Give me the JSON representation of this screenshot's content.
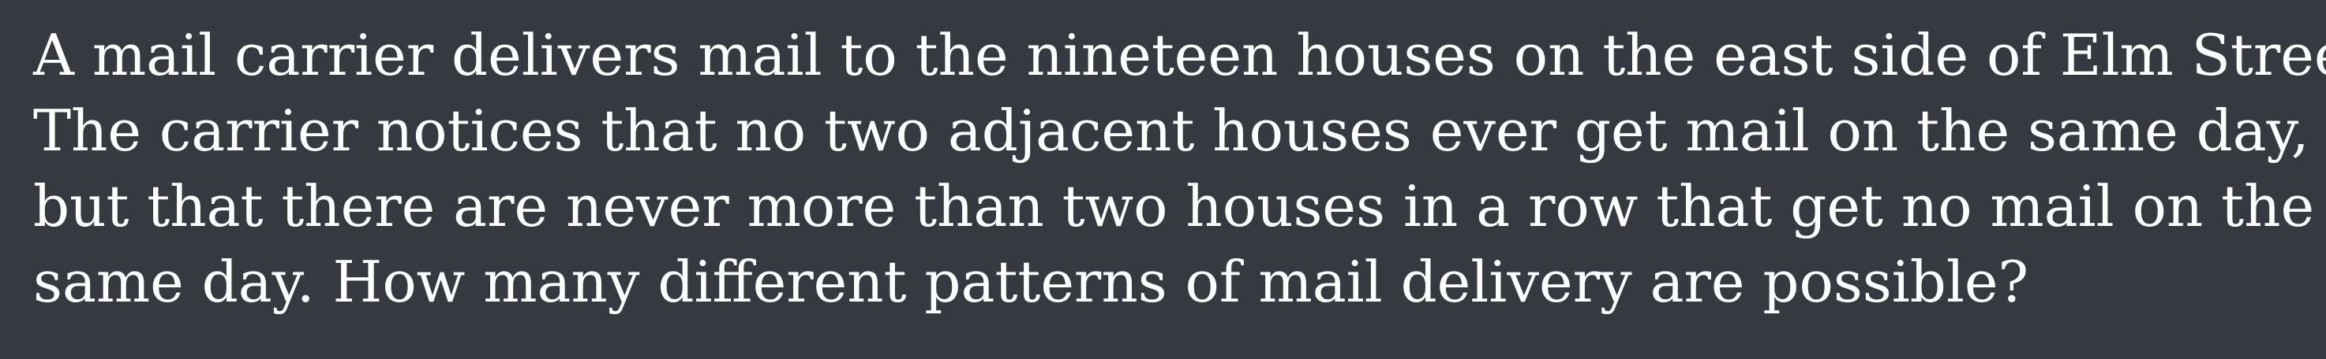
{
  "problem": {
    "lines": [
      "A mail carrier delivers mail to the nineteen houses on the east side of Elm Street.",
      "The carrier notices that no two adjacent houses ever get mail on the same day,",
      "but that there are never more than two houses in a row that get no mail on the",
      "same day. How many different patterns of mail delivery are possible?"
    ]
  },
  "colors": {
    "background": "#36393f",
    "text": "#ffffff"
  }
}
